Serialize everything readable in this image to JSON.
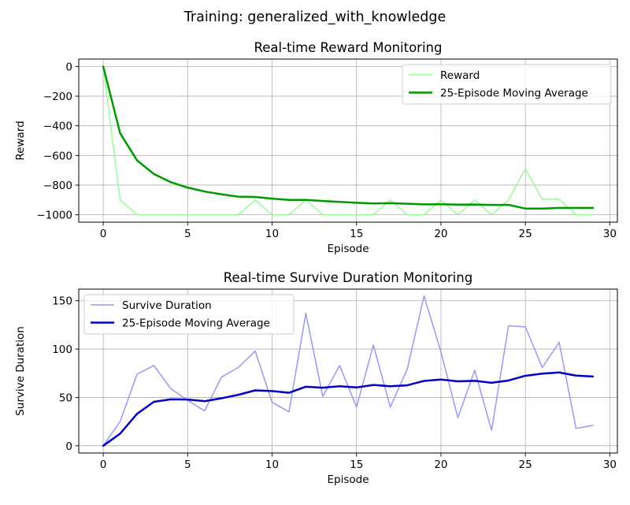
{
  "figure": {
    "suptitle": "Training: generalized_with_knowledge"
  },
  "chart_data": [
    {
      "type": "line",
      "title": "Real-time Reward Monitoring",
      "xlabel": "Episode",
      "ylabel": "Reward",
      "xlim": [
        -1.45,
        30.45
      ],
      "ylim": [
        -1050,
        50
      ],
      "xticks": [
        0,
        5,
        10,
        15,
        20,
        25,
        30
      ],
      "yticks": [
        0,
        -200,
        -400,
        -600,
        -800,
        -1000
      ],
      "grid": true,
      "legend": "top-right",
      "x": [
        0,
        1,
        2,
        3,
        4,
        5,
        6,
        7,
        8,
        9,
        10,
        11,
        12,
        13,
        14,
        15,
        16,
        17,
        18,
        19,
        20,
        21,
        22,
        23,
        24,
        25,
        26,
        27,
        28,
        29
      ],
      "series": [
        {
          "name": "Reward",
          "color": "#98fb98",
          "width": 1.5,
          "values": [
            0,
            -900,
            -1000,
            -1000,
            -1000,
            -1000,
            -1000,
            -1000,
            -1000,
            -900,
            -1000,
            -1000,
            -900,
            -1000,
            -1000,
            -1000,
            -1000,
            -900,
            -1000,
            -1000,
            -900,
            -1000,
            -900,
            -1000,
            -900,
            -690,
            -895,
            -895,
            -1000,
            -1000
          ]
        },
        {
          "name": "25-Episode Moving Average",
          "color": "#009900",
          "width": 2.5,
          "values": [
            0,
            -450,
            -633,
            -725,
            -780,
            -817,
            -843,
            -862,
            -878,
            -880,
            -891,
            -900,
            -900,
            -907,
            -913,
            -919,
            -924,
            -922,
            -926,
            -930,
            -929,
            -932,
            -931,
            -934,
            -933,
            -958,
            -958,
            -954,
            -954,
            -954
          ]
        }
      ]
    },
    {
      "type": "line",
      "title": "Real-time Survive Duration Monitoring",
      "xlabel": "Episode",
      "ylabel": "Survive Duration",
      "xlim": [
        -1.45,
        30.45
      ],
      "ylim": [
        -7.5,
        162
      ],
      "xticks": [
        0,
        5,
        10,
        15,
        20,
        25,
        30
      ],
      "yticks": [
        0,
        50,
        100,
        150
      ],
      "grid": true,
      "legend": "top-left",
      "x": [
        0,
        1,
        2,
        3,
        4,
        5,
        6,
        7,
        8,
        9,
        10,
        11,
        12,
        13,
        14,
        15,
        16,
        17,
        18,
        19,
        20,
        21,
        22,
        23,
        24,
        25,
        26,
        27,
        28,
        29
      ],
      "series": [
        {
          "name": "Survive Duration",
          "color": "#9999ee",
          "width": 1.5,
          "values": [
            0,
            25,
            74,
            83,
            59,
            47,
            36,
            71,
            81,
            98,
            45,
            35,
            137,
            51,
            83,
            40,
            104,
            40,
            79,
            155,
            97,
            29,
            78,
            16,
            124,
            123,
            81,
            107,
            18,
            21
          ]
        },
        {
          "name": "25-Episode Moving Average",
          "color": "#0000c0",
          "width": 2.5,
          "values": [
            0,
            12.5,
            33,
            45.5,
            48,
            47.8,
            46.1,
            49.1,
            52.7,
            57.3,
            56.6,
            54.8,
            61.1,
            60,
            61.6,
            60.3,
            62.9,
            61.6,
            62.5,
            67.1,
            68.5,
            66.7,
            67.2,
            65.1,
            67.5,
            72.4,
            74.6,
            75.8,
            72.6,
            71.6
          ]
        }
      ]
    }
  ]
}
